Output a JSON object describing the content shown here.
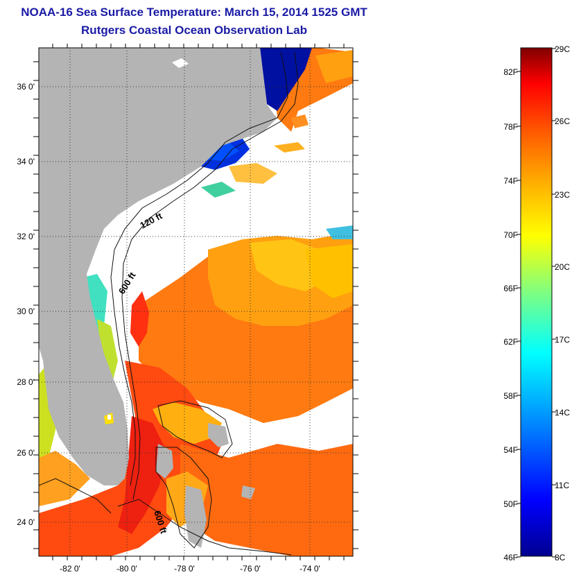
{
  "title": {
    "line1": "NOAA-16 Sea Surface Temperature:  March 15, 2014 1525 GMT",
    "line2": "Rutgers Coastal Ocean Observation Lab"
  },
  "map": {
    "lat_labels": [
      "36 0'",
      "34 0'",
      "32 0'",
      "30 0'",
      "28 0'",
      "26 0'",
      "24 0'"
    ],
    "lon_labels": [
      "-82 0'",
      "-80 0'",
      "-78 0'",
      "-76 0'",
      "-74 0'"
    ],
    "contour_labels": [
      "120 ft",
      "600 ft",
      "600 ft"
    ],
    "colors": {
      "land": "#b4b4b4",
      "cloud": "#ffffff"
    }
  },
  "colorbar": {
    "fahrenheit_labels": [
      "82F",
      "78F",
      "74F",
      "70F",
      "66F",
      "62F",
      "58F",
      "54F",
      "50F",
      "46F"
    ],
    "celsius_labels": [
      "29C",
      "26C",
      "23C",
      "20C",
      "17C",
      "14C",
      "11C",
      "8C"
    ],
    "colors": [
      "#00008f",
      "#0000ff",
      "#00aaff",
      "#00ffff",
      "#80ff80",
      "#ffff00",
      "#ffaa00",
      "#ff5500",
      "#ff0000",
      "#800000"
    ]
  }
}
